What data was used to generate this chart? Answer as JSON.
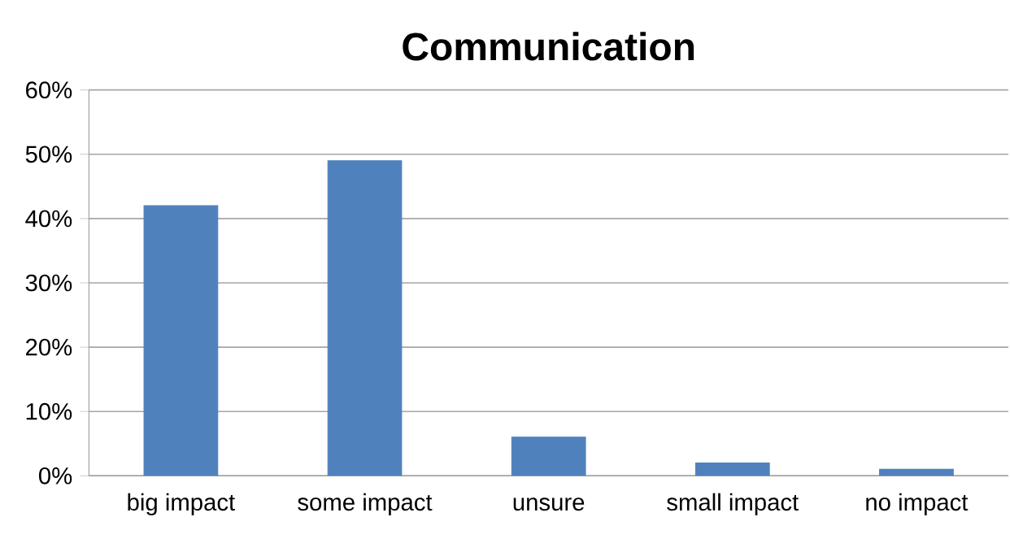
{
  "chart_data": {
    "type": "bar",
    "title": "Communication",
    "categories": [
      "big impact",
      "some impact",
      "unsure",
      "small impact",
      "no impact"
    ],
    "values": [
      42,
      49,
      6,
      2,
      1
    ],
    "color": "#4f81bd",
    "ylim": [
      0,
      60
    ],
    "yticks": [
      {
        "value": 0,
        "label": "0%"
      },
      {
        "value": 10,
        "label": "10%"
      },
      {
        "value": 20,
        "label": "20%"
      },
      {
        "value": 30,
        "label": "30%"
      },
      {
        "value": 40,
        "label": "40%"
      },
      {
        "value": 50,
        "label": "50%"
      },
      {
        "value": 60,
        "label": "60%"
      }
    ],
    "grid": "y"
  }
}
